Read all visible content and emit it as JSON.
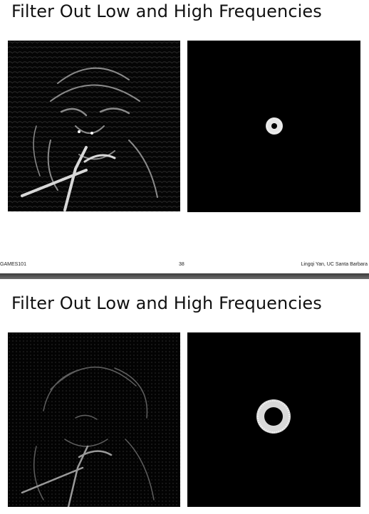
{
  "slide1": {
    "title": "Filter Out Low and High Frequencies",
    "footer": {
      "left": "GAMES101",
      "page_number": "38",
      "right": "Lingqi Yan, UC Santa Barbara"
    }
  },
  "slide2": {
    "title": "Filter Out Low and High Frequencies"
  }
}
